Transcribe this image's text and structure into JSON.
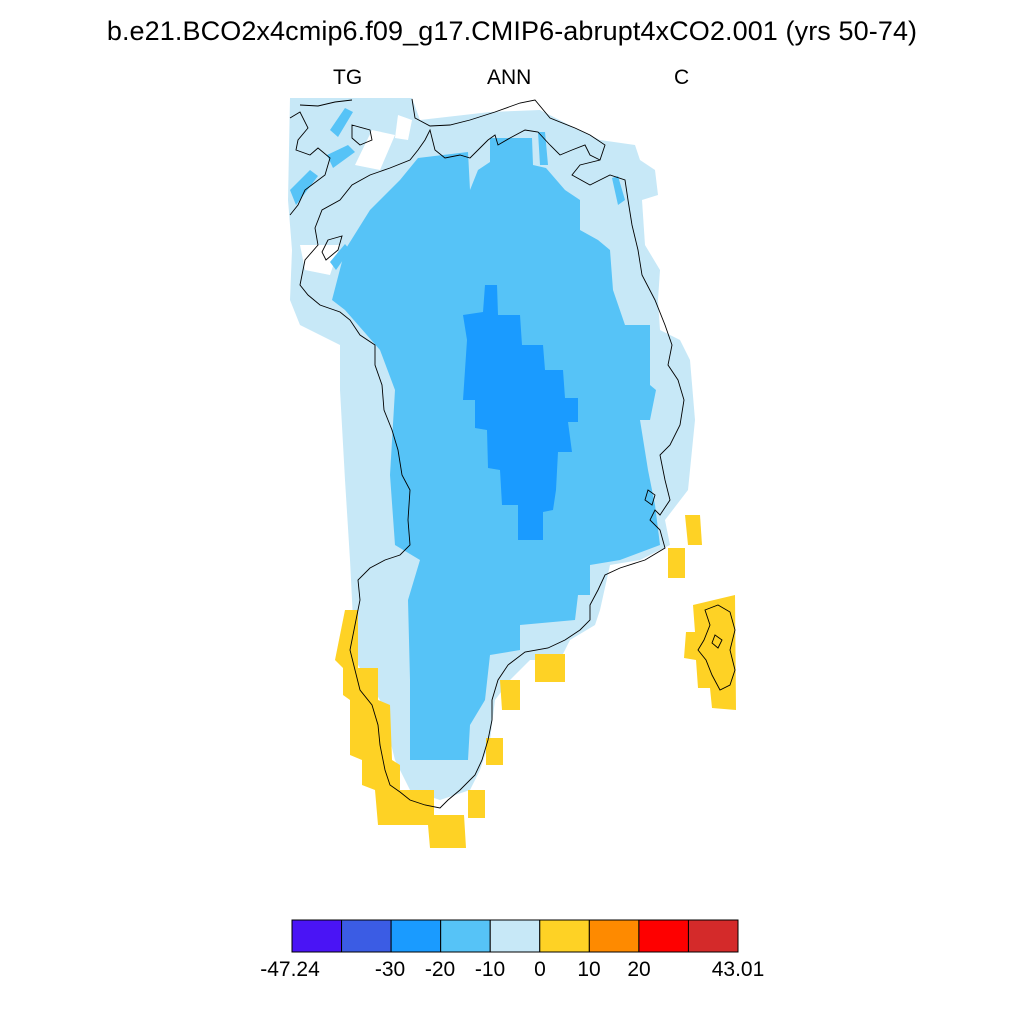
{
  "title": "b.e21.BCO2x4cmip6.f09_g17.CMIP6-abrupt4xCO2.001 (yrs 50-74)",
  "labels": {
    "left": "TG",
    "center": "ANN",
    "right": "C"
  },
  "colorbar": {
    "colors": [
      "#4a14f5",
      "#3b5ce4",
      "#1a9bff",
      "#56c3f7",
      "#c7e8f7",
      "#fed225",
      "#fe8a00",
      "#fe0000",
      "#d42a2a"
    ],
    "tick_labels": [
      "-47.24",
      "-30",
      "-20",
      "-10",
      "0",
      "10",
      "20",
      "43.01"
    ]
  },
  "map_colors": {
    "light_blue": "#c7e8f7",
    "mid_blue": "#56c3f7",
    "dark_blue": "#1a9bff",
    "yellow": "#fed225",
    "coast": "#000000"
  }
}
